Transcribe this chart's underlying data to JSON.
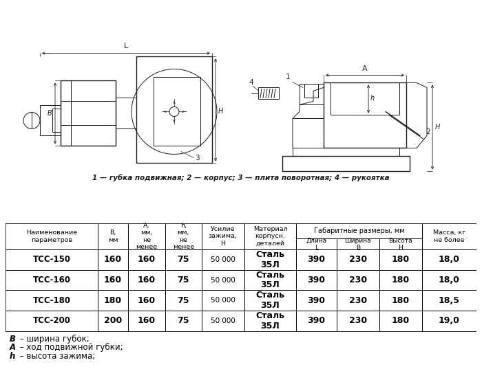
{
  "title_caption": "1 — губка подвижная; 2 — корпус; 3 — плита поворотная; 4 — рукоятка",
  "subheader_gabarity": "Габаритные размеры, мм",
  "rows": [
    [
      "ТСС-150",
      "160",
      "160",
      "75",
      "50 000",
      "Сталь\n35Л",
      "390",
      "230",
      "180",
      "18,0"
    ],
    [
      "ТСС-160",
      "160",
      "160",
      "75",
      "50 000",
      "Сталь\n35Л",
      "390",
      "230",
      "180",
      "18,0"
    ],
    [
      "ТСС-180",
      "180",
      "160",
      "75",
      "50 000",
      "Сталь\n35Л",
      "390",
      "230",
      "180",
      "18,5"
    ],
    [
      "ТСС-200",
      "200",
      "160",
      "75",
      "50 000",
      "Сталь\n35Л",
      "390",
      "230",
      "180",
      "19,0"
    ]
  ],
  "col_headers_top": [
    "Наименование\nпараметров",
    "B,\nмм",
    "A,\nмм,\nне\nменее",
    "h,\nмм,\nне\nменее",
    "Усилие\nзажима,\nН",
    "Материал\nкорпусн.\nдеталей",
    "Длина\nL",
    "Ширина\nB",
    "Высота\nH",
    "Масса, кг\nне более"
  ],
  "footnotes_bold": [
    "B",
    "A",
    "h"
  ],
  "footnotes_text": [
    " – ширина губок;",
    " – ход подвижной губки;",
    " – высота зажима;"
  ],
  "bg_color": "#ffffff"
}
